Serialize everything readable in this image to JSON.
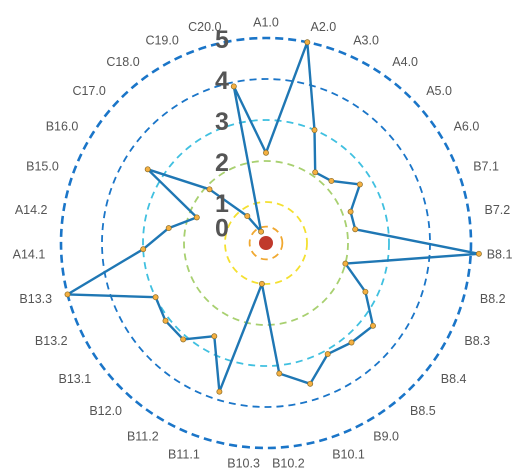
{
  "chart_data": {
    "type": "radar",
    "title": "",
    "categories": [
      "A1.0",
      "A2.0",
      "A3.0",
      "A4.0",
      "A5.0",
      "A6.0",
      "B7.1",
      "B7.2",
      "B8.1",
      "B8.2",
      "B8.3",
      "B8.4",
      "B8.5",
      "B9.0",
      "B10.1",
      "B10.2",
      "B10.3",
      "B11.1",
      "B11.2",
      "B12.0",
      "B13.1",
      "B13.2",
      "B13.3",
      "A14.1",
      "A14.2",
      "B15.0",
      "B16.0",
      "C17.0",
      "C18.0",
      "C19.0",
      "C20.0"
    ],
    "series": [
      {
        "color": "#1f77b4",
        "values": [
          2.2,
          5.0,
          3.0,
          2.1,
          2.2,
          2.7,
          2.2,
          2.2,
          5.2,
          2.0,
          2.7,
          3.3,
          3.2,
          3.1,
          3.6,
          3.2,
          1.0,
          3.8,
          2.6,
          3.1,
          3.1,
          3.0,
          5.0,
          3.0,
          2.4,
          1.8,
          3.4,
          1.9,
          0.8,
          0.3,
          3.9
        ]
      }
    ],
    "rings": [
      {
        "label": "0",
        "value": 0.4,
        "color": "#f0a830"
      },
      {
        "label": "1",
        "value": 1.0,
        "color": "#f4e030"
      },
      {
        "label": "2",
        "value": 2.0,
        "color": "#a8d070"
      },
      {
        "label": "3",
        "value": 3.0,
        "color": "#40c0e0"
      },
      {
        "label": "4",
        "value": 4.0,
        "color": "#1a75c8"
      },
      {
        "label": "5",
        "value": 5.0,
        "color": "#1a75c8"
      }
    ],
    "rmax": 5.2,
    "center_marker_color": "#c0392b",
    "point_color": "#f5b041"
  }
}
